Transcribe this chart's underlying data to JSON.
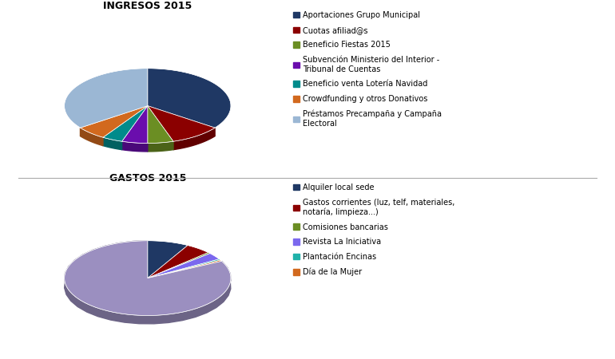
{
  "ingresos_title": "INGRESOS 2015",
  "gastos_title": "GASTOS 2015",
  "ingresos_labels": [
    "Aportaciones Grupo Municipal",
    "Cuotas afiliad@s",
    "Beneficio Fiestas 2015",
    "Subvención Ministerio del Interior -\nTribunal de Cuentas",
    "Beneficio venta Lotería Navidad",
    "Crowdfunding y otros Donativos",
    "Préstamos Precampaña y Campaña\nElectoral"
  ],
  "ingresos_values": [
    35,
    10,
    5,
    5,
    4,
    6,
    35
  ],
  "ingresos_colors": [
    "#1F3864",
    "#8B0000",
    "#6B8E23",
    "#6A0DAD",
    "#008B8B",
    "#D2691E",
    "#9BB7D4"
  ],
  "gastos_labels": [
    "Alquiler local sede",
    "Gastos corrientes (luz, telf, materiales,\nnotaría, limpieza...)",
    "Comisiones bancarias",
    "Revista La Iniciativa",
    "Plantación Encinas",
    "Día de la Mujer"
  ],
  "gastos_values": [
    8,
    5,
    0.5,
    3,
    0.5,
    0.5
  ],
  "gastos_large_value": 82.5,
  "gastos_colors": [
    "#1F3864",
    "#8B0000",
    "#6B8E23",
    "#7B68EE",
    "#20B2AA",
    "#D2691E"
  ],
  "gastos_large_color": "#9B8FC0",
  "gastos_extra_colors": [
    "#FFB6C1",
    "#90EE90",
    "#ADD8E6",
    "#FFDEAD"
  ],
  "background_color": "#FFFFFF",
  "title_fontsize": 9,
  "legend_fontsize": 7,
  "separator_color": "#AAAAAA"
}
